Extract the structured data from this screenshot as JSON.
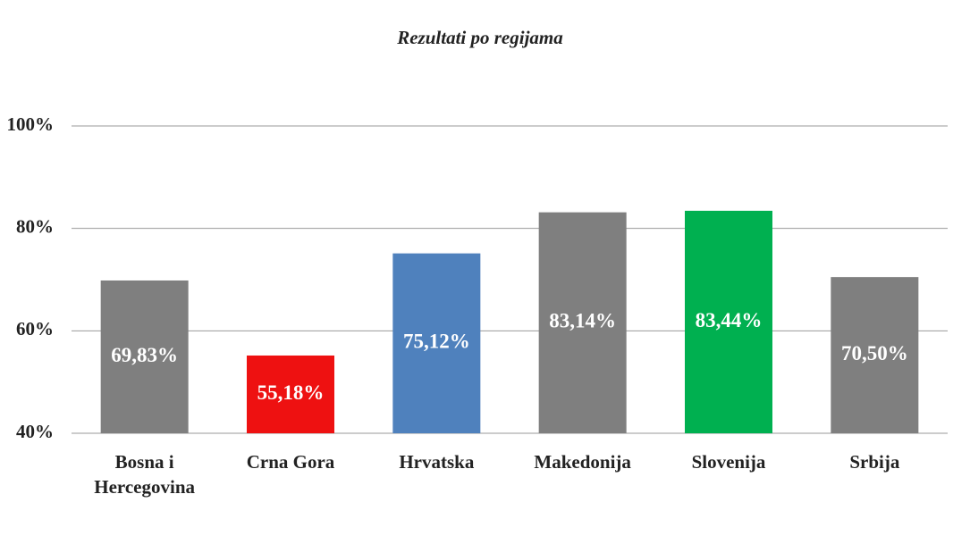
{
  "chart_data": {
    "type": "bar",
    "title": "Rezultati po regijama",
    "categories": [
      "Bosna i Hercegovina",
      "Crna Gora",
      "Hrvatska",
      "Makedonija",
      "Slovenija",
      "Srbija"
    ],
    "values": [
      69.83,
      55.18,
      75.12,
      83.14,
      83.44,
      70.5
    ],
    "value_labels": [
      "69,83%",
      "55,18%",
      "75,12%",
      "83,14%",
      "83,44%",
      "70,50%"
    ],
    "colors": [
      "#7f7f7f",
      "#ee1111",
      "#4f81bd",
      "#7f7f7f",
      "#00b050",
      "#7f7f7f"
    ],
    "ylim": [
      40,
      100
    ],
    "yticks": [
      {
        "value": 40,
        "label": "40%"
      },
      {
        "value": 60,
        "label": "60%"
      },
      {
        "value": 80,
        "label": "80%"
      },
      {
        "value": 100,
        "label": "100%"
      }
    ],
    "grid": true
  }
}
